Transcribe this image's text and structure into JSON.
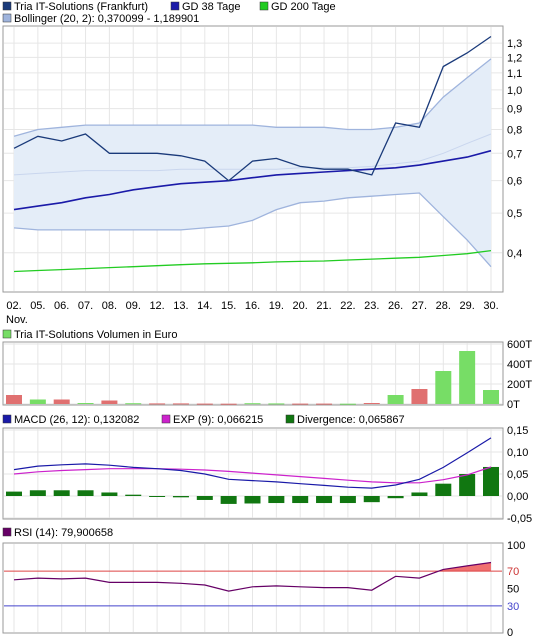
{
  "chart_data": [
    {
      "type": "line",
      "panel": "price",
      "y_scale": "log",
      "legend": {
        "price": {
          "label": "Tria IT-Solutions (Frankfurt)",
          "color": "#1a3a7a"
        },
        "ma38": {
          "label": "GD 38 Tage",
          "color": "#1a1aa8"
        },
        "ma200": {
          "label": "GD 200 Tage",
          "color": "#22cc22"
        },
        "bollinger": {
          "label": "Bollinger (20, 2): 0,370099 - 1,189901",
          "color": "#9fb4dd"
        }
      },
      "x_labels": [
        "02.",
        "05.",
        "06.",
        "07.",
        "08.",
        "09.",
        "12.",
        "13.",
        "14.",
        "15.",
        "16.",
        "19.",
        "20.",
        "21.",
        "22.",
        "23.",
        "26.",
        "27.",
        "28.",
        "29.",
        "30."
      ],
      "x_sublabel": "Nov.",
      "y_ticks": [
        {
          "v": 0.4,
          "label": "0,4"
        },
        {
          "v": 0.5,
          "label": "0,5"
        },
        {
          "v": 0.6,
          "label": "0,6"
        },
        {
          "v": 0.7,
          "label": "0,7"
        },
        {
          "v": 0.8,
          "label": "0,8"
        },
        {
          "v": 0.9,
          "label": "0,9"
        },
        {
          "v": 1.0,
          "label": "1,0"
        },
        {
          "v": 1.1,
          "label": "1,1"
        },
        {
          "v": 1.2,
          "label": "1,2"
        },
        {
          "v": 1.3,
          "label": "1,3"
        }
      ],
      "ylim": [
        0.33,
        1.4
      ],
      "series": {
        "price": [
          0.72,
          0.77,
          0.75,
          0.78,
          0.7,
          0.7,
          0.7,
          0.69,
          0.67,
          0.6,
          0.67,
          0.68,
          0.65,
          0.64,
          0.64,
          0.62,
          0.83,
          0.81,
          1.14,
          1.23,
          1.35
        ],
        "ma38": [
          0.51,
          0.52,
          0.53,
          0.545,
          0.555,
          0.57,
          0.58,
          0.59,
          0.595,
          0.6,
          0.61,
          0.62,
          0.625,
          0.63,
          0.635,
          0.64,
          0.645,
          0.655,
          0.67,
          0.685,
          0.71
        ],
        "ma200": [
          0.36,
          0.362,
          0.364,
          0.366,
          0.368,
          0.37,
          0.372,
          0.374,
          0.376,
          0.377,
          0.378,
          0.38,
          0.381,
          0.382,
          0.384,
          0.386,
          0.388,
          0.39,
          0.394,
          0.398,
          0.405
        ],
        "boll_upper": [
          0.77,
          0.8,
          0.81,
          0.82,
          0.82,
          0.82,
          0.82,
          0.82,
          0.82,
          0.82,
          0.82,
          0.81,
          0.81,
          0.81,
          0.8,
          0.8,
          0.81,
          0.83,
          0.96,
          1.07,
          1.19
        ],
        "boll_lower": [
          0.46,
          0.455,
          0.455,
          0.455,
          0.455,
          0.455,
          0.455,
          0.455,
          0.46,
          0.465,
          0.48,
          0.51,
          0.53,
          0.535,
          0.545,
          0.55,
          0.555,
          0.56,
          0.49,
          0.43,
          0.37
        ],
        "boll_mid": [
          0.62,
          0.625,
          0.63,
          0.635,
          0.635,
          0.635,
          0.635,
          0.64,
          0.64,
          0.64,
          0.64,
          0.64,
          0.645,
          0.645,
          0.645,
          0.65,
          0.66,
          0.67,
          0.7,
          0.74,
          0.78
        ]
      }
    },
    {
      "type": "bar",
      "panel": "volume",
      "legend": {
        "label": "Tria IT-Solutions Volumen in Euro",
        "color": "#77dd66"
      },
      "y_ticks": [
        {
          "v": 0,
          "label": "0T"
        },
        {
          "v": 200,
          "label": "200T"
        },
        {
          "v": 400,
          "label": "400T"
        },
        {
          "v": 600,
          "label": "600T"
        }
      ],
      "ylim": [
        0,
        600
      ],
      "values": [
        90,
        45,
        45,
        10,
        35,
        8,
        6,
        6,
        4,
        3,
        8,
        6,
        4,
        4,
        3,
        10,
        90,
        150,
        330,
        530,
        140
      ],
      "up": [
        false,
        true,
        false,
        true,
        false,
        true,
        false,
        false,
        false,
        false,
        true,
        true,
        false,
        false,
        true,
        false,
        true,
        false,
        true,
        true,
        true
      ],
      "up_color": "#77dd66",
      "down_color": "#e07070"
    },
    {
      "type": "line",
      "panel": "macd",
      "legend": {
        "macd": {
          "label": "MACD (26, 12): 0,132082",
          "color": "#1a1aa8"
        },
        "signal": {
          "label": "EXP (9): 0,066215",
          "color": "#cc22cc"
        },
        "divergence": {
          "label": "Divergence: 0,065867",
          "color": "#117711"
        }
      },
      "y_ticks": [
        {
          "v": -0.05,
          "label": "-0,05"
        },
        {
          "v": 0,
          "label": "0,00"
        },
        {
          "v": 0.05,
          "label": "0,05"
        },
        {
          "v": 0.1,
          "label": "0,10"
        },
        {
          "v": 0.15,
          "label": "0,15"
        }
      ],
      "ylim": [
        -0.05,
        0.15
      ],
      "macd": [
        0.06,
        0.068,
        0.071,
        0.073,
        0.07,
        0.065,
        0.062,
        0.058,
        0.05,
        0.038,
        0.035,
        0.032,
        0.028,
        0.024,
        0.02,
        0.018,
        0.025,
        0.038,
        0.065,
        0.098,
        0.132
      ],
      "signal": [
        0.05,
        0.055,
        0.058,
        0.06,
        0.062,
        0.062,
        0.062,
        0.061,
        0.059,
        0.056,
        0.052,
        0.048,
        0.044,
        0.04,
        0.036,
        0.032,
        0.03,
        0.03,
        0.037,
        0.048,
        0.066
      ],
      "divergence": [
        0.01,
        0.013,
        0.013,
        0.013,
        0.008,
        0.003,
        0.0,
        -0.003,
        -0.009,
        -0.018,
        -0.017,
        -0.016,
        -0.016,
        -0.016,
        -0.016,
        -0.014,
        -0.005,
        0.008,
        0.028,
        0.05,
        0.066
      ]
    },
    {
      "type": "line",
      "panel": "rsi",
      "legend": {
        "label": "RSI (14): 79,900658",
        "color": "#660066"
      },
      "y_ticks": [
        {
          "v": 0,
          "label": "0"
        },
        {
          "v": 30,
          "label": "30",
          "color": "#4444cc"
        },
        {
          "v": 50,
          "label": "50"
        },
        {
          "v": 70,
          "label": "70",
          "color": "#cc3333"
        },
        {
          "v": 100,
          "label": "100"
        }
      ],
      "ylim": [
        0,
        100
      ],
      "values": [
        60,
        62,
        61,
        62,
        57,
        57,
        57,
        56,
        54,
        47,
        52,
        53,
        52,
        51,
        51,
        48,
        64,
        62,
        72,
        76,
        79.9
      ],
      "overbought": 70,
      "oversold": 30
    }
  ]
}
